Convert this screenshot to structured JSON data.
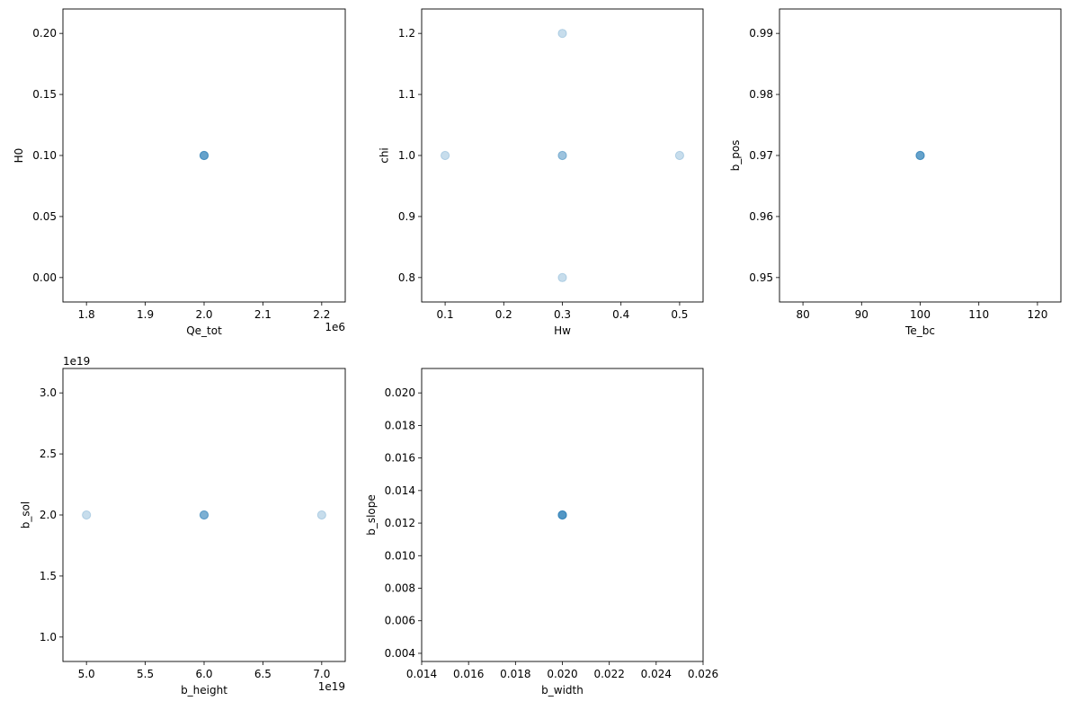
{
  "figure": {
    "background": "#ffffff",
    "marker_color": "#1f77b4",
    "marker_alpha": 0.25
  },
  "chart_data": [
    {
      "type": "scatter",
      "xlabel": "Qe_tot",
      "ylabel": "H0",
      "x_offset_text": "1e6",
      "y_offset_text": "",
      "xlim": [
        1.76,
        2.24
      ],
      "ylim": [
        -0.02,
        0.22
      ],
      "xticks": [
        1.8,
        1.9,
        2.0,
        2.1,
        2.2
      ],
      "xtick_labels": [
        "1.8",
        "1.9",
        "2.0",
        "2.1",
        "2.2"
      ],
      "yticks": [
        0.0,
        0.05,
        0.1,
        0.15,
        0.2
      ],
      "ytick_labels": [
        "0.00",
        "0.05",
        "0.10",
        "0.15",
        "0.20"
      ],
      "grid": false,
      "points": [
        {
          "x": 2.0,
          "y": 0.1,
          "count": 4
        }
      ]
    },
    {
      "type": "scatter",
      "xlabel": "Hw",
      "ylabel": "chi",
      "x_offset_text": "",
      "y_offset_text": "",
      "xlim": [
        0.06,
        0.54
      ],
      "ylim": [
        0.76,
        1.24
      ],
      "xticks": [
        0.1,
        0.2,
        0.3,
        0.4,
        0.5
      ],
      "xtick_labels": [
        "0.1",
        "0.2",
        "0.3",
        "0.4",
        "0.5"
      ],
      "yticks": [
        0.8,
        0.9,
        1.0,
        1.1,
        1.2
      ],
      "ytick_labels": [
        "0.8",
        "0.9",
        "1.0",
        "1.1",
        "1.2"
      ],
      "grid": false,
      "points": [
        {
          "x": 0.3,
          "y": 1.2,
          "count": 1
        },
        {
          "x": 0.1,
          "y": 1.0,
          "count": 1
        },
        {
          "x": 0.3,
          "y": 1.0,
          "count": 2
        },
        {
          "x": 0.5,
          "y": 1.0,
          "count": 1
        },
        {
          "x": 0.3,
          "y": 0.8,
          "count": 1
        }
      ]
    },
    {
      "type": "scatter",
      "xlabel": "Te_bc",
      "ylabel": "b_pos",
      "x_offset_text": "",
      "y_offset_text": "",
      "xlim": [
        76,
        124
      ],
      "ylim": [
        0.946,
        0.994
      ],
      "xticks": [
        80,
        90,
        100,
        110,
        120
      ],
      "xtick_labels": [
        "80",
        "90",
        "100",
        "110",
        "120"
      ],
      "yticks": [
        0.95,
        0.96,
        0.97,
        0.98,
        0.99
      ],
      "ytick_labels": [
        "0.95",
        "0.96",
        "0.97",
        "0.98",
        "0.99"
      ],
      "grid": false,
      "points": [
        {
          "x": 100,
          "y": 0.97,
          "count": 4
        }
      ]
    },
    {
      "type": "scatter",
      "xlabel": "b_height",
      "ylabel": "b_sol",
      "x_offset_text": "1e19",
      "y_offset_text": "1e19",
      "xlim": [
        4.8,
        7.2
      ],
      "ylim": [
        0.8,
        3.2
      ],
      "xticks": [
        5.0,
        5.5,
        6.0,
        6.5,
        7.0
      ],
      "xtick_labels": [
        "5.0",
        "5.5",
        "6.0",
        "6.5",
        "7.0"
      ],
      "yticks": [
        1.0,
        1.5,
        2.0,
        2.5,
        3.0
      ],
      "ytick_labels": [
        "1.0",
        "1.5",
        "2.0",
        "2.5",
        "3.0"
      ],
      "grid": false,
      "points": [
        {
          "x": 5.0,
          "y": 2.0,
          "count": 1
        },
        {
          "x": 6.0,
          "y": 2.0,
          "count": 3
        },
        {
          "x": 7.0,
          "y": 2.0,
          "count": 1
        }
      ]
    },
    {
      "type": "scatter",
      "xlabel": "b_width",
      "ylabel": "b_slope",
      "x_offset_text": "",
      "y_offset_text": "",
      "xlim": [
        0.014,
        0.026
      ],
      "ylim": [
        0.0035,
        0.0215
      ],
      "xticks": [
        0.014,
        0.016,
        0.018,
        0.02,
        0.022,
        0.024,
        0.026
      ],
      "xtick_labels": [
        "0.014",
        "0.016",
        "0.018",
        "0.020",
        "0.022",
        "0.024",
        "0.026"
      ],
      "yticks": [
        0.004,
        0.006,
        0.008,
        0.01,
        0.012,
        0.014,
        0.016,
        0.018,
        0.02
      ],
      "ytick_labels": [
        "0.004",
        "0.006",
        "0.008",
        "0.010",
        "0.012",
        "0.014",
        "0.016",
        "0.018",
        "0.020"
      ],
      "grid": false,
      "points": [
        {
          "x": 0.02,
          "y": 0.0125,
          "count": 5
        }
      ]
    }
  ]
}
